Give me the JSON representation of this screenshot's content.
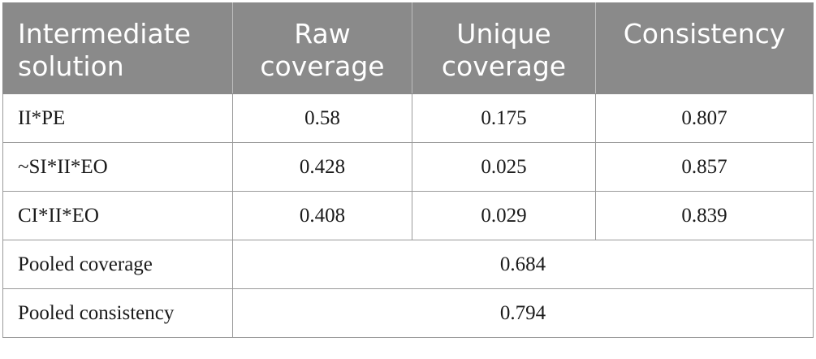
{
  "table": {
    "headers": [
      {
        "line1": "Intermediate",
        "line2": "solution"
      },
      {
        "line1": "Raw",
        "line2": "coverage"
      },
      {
        "line1": "Unique",
        "line2": "coverage"
      },
      {
        "line1": "Consistency",
        "line2": ""
      }
    ],
    "rows": [
      {
        "solution": "II*PE",
        "raw": "0.58",
        "unique": "0.175",
        "consistency": "0.807"
      },
      {
        "solution": "~SI*II*EO",
        "raw": "0.428",
        "unique": "0.025",
        "consistency": "0.857"
      },
      {
        "solution": "CI*II*EO",
        "raw": "0.408",
        "unique": "0.029",
        "consistency": "0.839"
      }
    ],
    "summary": [
      {
        "label": "Pooled coverage",
        "value": "0.684"
      },
      {
        "label": "Pooled consistency",
        "value": "0.794"
      }
    ]
  }
}
